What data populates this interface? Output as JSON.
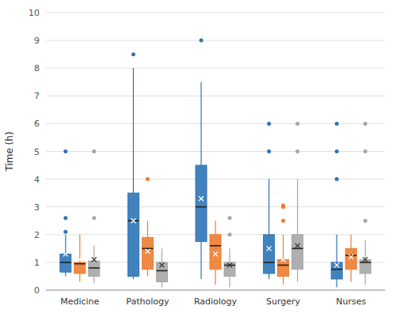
{
  "chart_data": {
    "type": "box",
    "ylabel": "Time (h)",
    "categories": [
      "Medicine",
      "Pathology",
      "Radiology",
      "Surgery",
      "Nurses"
    ],
    "ylim": [
      0,
      10
    ],
    "yticks": [
      0,
      1,
      2,
      3,
      4,
      5,
      6,
      7,
      8,
      9,
      10
    ],
    "grid": true,
    "series": [
      {
        "color": "#2E75B6",
        "values": [
          {
            "q1": 0.65,
            "median": 1.0,
            "q3": 1.3,
            "whislo": 0.5,
            "whishi": 2.0,
            "mean": 1.3,
            "fliers": [
              2.6,
              2.1,
              5.0
            ]
          },
          {
            "q1": 0.5,
            "median": 2.5,
            "q3": 3.5,
            "whislo": 0.4,
            "whishi": 8.0,
            "mean": 2.5,
            "fliers": [
              8.5
            ]
          },
          {
            "q1": 1.75,
            "median": 3.0,
            "q3": 4.5,
            "whislo": 0.4,
            "whishi": 7.5,
            "mean": 3.3,
            "fliers": [
              9.0
            ]
          },
          {
            "q1": 0.6,
            "median": 1.0,
            "q3": 2.0,
            "whislo": 0.4,
            "whishi": 4.0,
            "mean": 1.5,
            "fliers": [
              5.0,
              6.0
            ]
          },
          {
            "q1": 0.4,
            "median": 0.75,
            "q3": 1.0,
            "whislo": 0.1,
            "whishi": 2.0,
            "mean": 0.9,
            "fliers": [
              4.0,
              5.0,
              6.0
            ]
          }
        ]
      },
      {
        "color": "#ED7D31",
        "values": [
          {
            "q1": 0.6,
            "median": 0.95,
            "q3": 1.0,
            "whislo": 0.3,
            "whishi": 2.0,
            "mean": 1.1,
            "fliers": []
          },
          {
            "q1": 0.75,
            "median": 1.5,
            "q3": 1.9,
            "whislo": 0.5,
            "whishi": 2.5,
            "mean": 1.4,
            "fliers": [
              4.0
            ]
          },
          {
            "q1": 0.75,
            "median": 1.6,
            "q3": 2.0,
            "whislo": 0.2,
            "whishi": 2.5,
            "mean": 1.3,
            "fliers": []
          },
          {
            "q1": 0.5,
            "median": 0.9,
            "q3": 1.1,
            "whislo": 0.2,
            "whishi": 2.0,
            "mean": 1.1,
            "fliers": [
              2.5,
              3.0,
              3.05
            ]
          },
          {
            "q1": 0.75,
            "median": 1.25,
            "q3": 1.5,
            "whislo": 0.3,
            "whishi": 2.0,
            "mean": 1.2,
            "fliers": []
          }
        ]
      },
      {
        "color": "#A6A6A6",
        "values": [
          {
            "q1": 0.5,
            "median": 0.8,
            "q3": 1.05,
            "whislo": 0.25,
            "whishi": 1.6,
            "mean": 1.1,
            "fliers": [
              2.6,
              5.0
            ]
          },
          {
            "q1": 0.3,
            "median": 0.7,
            "q3": 1.0,
            "whislo": 0.1,
            "whishi": 1.5,
            "mean": 0.9,
            "fliers": []
          },
          {
            "q1": 0.5,
            "median": 0.9,
            "q3": 1.0,
            "whislo": 0.1,
            "whishi": 1.5,
            "mean": 0.9,
            "fliers": [
              2.0,
              2.6
            ]
          },
          {
            "q1": 0.75,
            "median": 1.5,
            "q3": 2.0,
            "whislo": 0.3,
            "whishi": 4.0,
            "mean": 1.6,
            "fliers": [
              5.0,
              6.0
            ]
          },
          {
            "q1": 0.6,
            "median": 1.0,
            "q3": 1.1,
            "whislo": 0.2,
            "whishi": 1.8,
            "mean": 1.1,
            "fliers": [
              2.5,
              5.0,
              6.0
            ]
          }
        ]
      }
    ]
  }
}
